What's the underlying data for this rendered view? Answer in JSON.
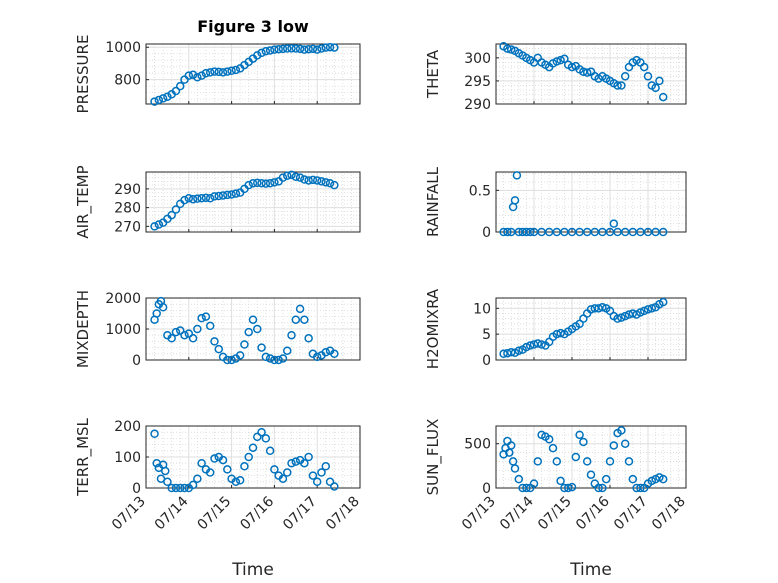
{
  "figure": {
    "title": "Figure 3 low",
    "marker_color": "#0072BD"
  },
  "x_ticks": [
    "07/13",
    "07/14",
    "07/15",
    "07/16",
    "07/17",
    "07/18"
  ],
  "chart_data": [
    {
      "type": "scatter",
      "id": "pressure",
      "ylabel": "PRESSURE",
      "xlabel": "",
      "xlim": [
        0,
        5
      ],
      "ylim": [
        650,
        1020
      ],
      "yticks": [
        800,
        1000
      ],
      "grid": true,
      "x": [
        0.2,
        0.3,
        0.4,
        0.5,
        0.6,
        0.7,
        0.8,
        0.9,
        1.0,
        1.1,
        1.2,
        1.3,
        1.4,
        1.5,
        1.6,
        1.7,
        1.8,
        1.9,
        2.0,
        2.1,
        2.2,
        2.3,
        2.4,
        2.5,
        2.6,
        2.7,
        2.8,
        2.9,
        3.0,
        3.1,
        3.2,
        3.3,
        3.4,
        3.5,
        3.6,
        3.7,
        3.8,
        3.9,
        4.0,
        4.1,
        4.2,
        4.3,
        4.4
      ],
      "y": [
        665,
        675,
        685,
        695,
        710,
        730,
        760,
        800,
        825,
        830,
        815,
        825,
        840,
        845,
        850,
        848,
        845,
        850,
        855,
        860,
        870,
        890,
        910,
        930,
        950,
        965,
        975,
        980,
        985,
        988,
        990,
        992,
        993,
        992,
        990,
        985,
        988,
        990,
        985,
        992,
        998,
        1000,
        998
      ]
    },
    {
      "type": "scatter",
      "id": "theta",
      "ylabel": "THETA",
      "xlabel": "",
      "xlim": [
        0,
        5
      ],
      "ylim": [
        290,
        303
      ],
      "yticks": [
        290,
        295,
        300
      ],
      "grid": true,
      "x": [
        0.2,
        0.3,
        0.4,
        0.5,
        0.6,
        0.7,
        0.8,
        0.9,
        1.0,
        1.1,
        1.2,
        1.3,
        1.4,
        1.5,
        1.6,
        1.7,
        1.8,
        1.9,
        2.0,
        2.1,
        2.2,
        2.3,
        2.4,
        2.5,
        2.6,
        2.7,
        2.8,
        2.9,
        3.0,
        3.1,
        3.2,
        3.3,
        3.4,
        3.5,
        3.6,
        3.7,
        3.8,
        3.9,
        4.0,
        4.1,
        4.2,
        4.3,
        4.4
      ],
      "y": [
        302.5,
        302,
        301.8,
        301.5,
        301,
        300.5,
        300,
        299.5,
        299,
        300,
        299,
        298.5,
        298,
        298.8,
        299.2,
        299.5,
        299.8,
        298.5,
        298,
        298.2,
        297.5,
        297,
        296.8,
        297,
        296,
        295.5,
        296,
        295.5,
        295,
        294.5,
        294,
        294,
        296,
        298,
        299,
        299.5,
        299,
        298,
        296,
        294,
        293.5,
        295,
        291.5
      ]
    },
    {
      "type": "scatter",
      "id": "air_temp",
      "ylabel": "AIR_TEMP",
      "xlabel": "",
      "xlim": [
        0,
        5
      ],
      "ylim": [
        267,
        299
      ],
      "yticks": [
        270,
        280,
        290
      ],
      "grid": true,
      "x": [
        0.2,
        0.3,
        0.4,
        0.5,
        0.6,
        0.7,
        0.8,
        0.9,
        1.0,
        1.1,
        1.2,
        1.3,
        1.4,
        1.5,
        1.6,
        1.7,
        1.8,
        1.9,
        2.0,
        2.1,
        2.2,
        2.3,
        2.4,
        2.5,
        2.6,
        2.7,
        2.8,
        2.9,
        3.0,
        3.1,
        3.2,
        3.3,
        3.4,
        3.5,
        3.6,
        3.7,
        3.8,
        3.9,
        4.0,
        4.1,
        4.2,
        4.3,
        4.4
      ],
      "y": [
        270,
        271,
        272,
        274,
        276,
        279,
        282,
        284,
        285,
        284.5,
        284.8,
        285,
        285.2,
        285,
        286,
        286.2,
        286.5,
        286.8,
        287,
        287.5,
        288,
        290,
        292,
        293,
        293.2,
        293,
        292.8,
        293,
        293.5,
        294,
        296,
        297,
        297.5,
        296.5,
        296,
        295,
        294.5,
        294.8,
        294.5,
        294,
        293.5,
        293,
        292
      ]
    },
    {
      "type": "scatter",
      "id": "rainfall",
      "ylabel": "RAINFALL",
      "xlabel": "",
      "xlim": [
        0,
        5
      ],
      "ylim": [
        0,
        0.72
      ],
      "yticks": [
        0,
        0.5
      ],
      "grid": true,
      "x": [
        0.2,
        0.3,
        0.4,
        0.45,
        0.5,
        0.55,
        0.6,
        0.7,
        0.8,
        0.9,
        1.0,
        1.2,
        1.4,
        1.6,
        1.8,
        2.0,
        2.2,
        2.4,
        2.6,
        2.8,
        3.0,
        3.1,
        3.2,
        3.4,
        3.6,
        3.8,
        4.0,
        4.2,
        4.4
      ],
      "y": [
        0,
        0,
        0,
        0.3,
        0.38,
        0.68,
        0,
        0,
        0,
        0,
        0,
        0,
        0,
        0,
        0,
        0,
        0,
        0,
        0,
        0,
        0,
        0.1,
        0,
        0,
        0,
        0,
        0,
        0,
        0
      ]
    },
    {
      "type": "scatter",
      "id": "mixdepth",
      "ylabel": "MIXDEPTH",
      "xlabel": "",
      "xlim": [
        0,
        5
      ],
      "ylim": [
        0,
        2000
      ],
      "yticks": [
        0,
        1000,
        2000
      ],
      "grid": true,
      "x": [
        0.2,
        0.25,
        0.3,
        0.35,
        0.4,
        0.5,
        0.6,
        0.7,
        0.8,
        0.9,
        1.0,
        1.1,
        1.2,
        1.3,
        1.4,
        1.5,
        1.6,
        1.7,
        1.8,
        1.9,
        2.0,
        2.1,
        2.2,
        2.3,
        2.4,
        2.5,
        2.6,
        2.7,
        2.8,
        2.9,
        3.0,
        3.1,
        3.2,
        3.3,
        3.4,
        3.5,
        3.6,
        3.7,
        3.8,
        3.9,
        4.0,
        4.1,
        4.2,
        4.3,
        4.4
      ],
      "y": [
        1300,
        1500,
        1800,
        1900,
        1700,
        800,
        700,
        900,
        950,
        800,
        850,
        700,
        1000,
        1350,
        1400,
        1100,
        600,
        350,
        100,
        0,
        0,
        50,
        150,
        500,
        900,
        1300,
        1000,
        400,
        100,
        50,
        0,
        0,
        50,
        300,
        800,
        1300,
        1650,
        1300,
        700,
        200,
        100,
        150,
        250,
        300,
        200
      ]
    },
    {
      "type": "scatter",
      "id": "h2omixra",
      "ylabel": "H2OMIXRA",
      "xlabel": "",
      "xlim": [
        0,
        5
      ],
      "ylim": [
        0,
        12
      ],
      "yticks": [
        0,
        5,
        10
      ],
      "grid": true,
      "x": [
        0.2,
        0.3,
        0.4,
        0.5,
        0.6,
        0.7,
        0.8,
        0.9,
        1.0,
        1.1,
        1.2,
        1.3,
        1.4,
        1.5,
        1.6,
        1.7,
        1.8,
        1.9,
        2.0,
        2.1,
        2.2,
        2.3,
        2.4,
        2.5,
        2.6,
        2.7,
        2.8,
        2.9,
        3.0,
        3.1,
        3.2,
        3.3,
        3.4,
        3.5,
        3.6,
        3.7,
        3.8,
        3.9,
        4.0,
        4.1,
        4.2,
        4.3,
        4.4
      ],
      "y": [
        1.2,
        1.3,
        1.5,
        1.4,
        1.8,
        2.0,
        2.5,
        2.8,
        3.0,
        3.2,
        3.0,
        2.8,
        3.5,
        4.5,
        5.0,
        5.2,
        5.0,
        5.5,
        6.0,
        6.5,
        7.0,
        8.0,
        9.0,
        9.8,
        10,
        10,
        10.2,
        10,
        9.5,
        8.5,
        8.0,
        8.2,
        8.5,
        8.8,
        9.0,
        8.8,
        9.2,
        9.5,
        9.8,
        10,
        10.2,
        10.8,
        11.2
      ]
    },
    {
      "type": "scatter",
      "id": "terr_msl",
      "ylabel": "TERR_MSL",
      "xlabel": "Time",
      "xlim": [
        0,
        5
      ],
      "ylim": [
        0,
        200
      ],
      "yticks": [
        0,
        100,
        200
      ],
      "grid": true,
      "x": [
        0.2,
        0.25,
        0.3,
        0.35,
        0.4,
        0.45,
        0.5,
        0.6,
        0.7,
        0.8,
        0.9,
        1.0,
        1.1,
        1.2,
        1.3,
        1.4,
        1.5,
        1.6,
        1.7,
        1.8,
        1.9,
        2.0,
        2.1,
        2.2,
        2.3,
        2.4,
        2.5,
        2.6,
        2.7,
        2.8,
        2.9,
        3.0,
        3.1,
        3.2,
        3.3,
        3.4,
        3.5,
        3.6,
        3.7,
        3.8,
        3.9,
        4.0,
        4.1,
        4.2,
        4.3,
        4.4
      ],
      "y": [
        175,
        80,
        65,
        30,
        75,
        55,
        20,
        0,
        0,
        0,
        0,
        0,
        10,
        30,
        80,
        60,
        50,
        95,
        100,
        90,
        60,
        30,
        20,
        25,
        70,
        100,
        130,
        165,
        180,
        160,
        120,
        60,
        40,
        30,
        50,
        80,
        85,
        90,
        80,
        100,
        40,
        20,
        50,
        70,
        20,
        5
      ]
    },
    {
      "type": "scatter",
      "id": "sun_flux",
      "ylabel": "SUN_FLUX",
      "xlabel": "Time",
      "xlim": [
        0,
        5
      ],
      "ylim": [
        0,
        700
      ],
      "yticks": [
        0,
        500
      ],
      "grid": true,
      "x": [
        0.2,
        0.25,
        0.3,
        0.35,
        0.4,
        0.45,
        0.5,
        0.6,
        0.7,
        0.8,
        0.9,
        1.0,
        1.1,
        1.2,
        1.3,
        1.4,
        1.5,
        1.6,
        1.7,
        1.8,
        1.9,
        2.0,
        2.1,
        2.2,
        2.3,
        2.4,
        2.5,
        2.6,
        2.7,
        2.8,
        2.9,
        3.0,
        3.1,
        3.2,
        3.3,
        3.4,
        3.5,
        3.6,
        3.7,
        3.8,
        3.9,
        4.0,
        4.1,
        4.2,
        4.3,
        4.4
      ],
      "y": [
        380,
        450,
        530,
        400,
        480,
        300,
        220,
        100,
        0,
        0,
        0,
        50,
        300,
        600,
        580,
        550,
        450,
        300,
        80,
        0,
        0,
        10,
        350,
        600,
        520,
        300,
        150,
        50,
        0,
        0,
        100,
        300,
        480,
        620,
        650,
        500,
        300,
        100,
        0,
        0,
        0,
        50,
        80,
        100,
        120,
        100
      ]
    }
  ]
}
